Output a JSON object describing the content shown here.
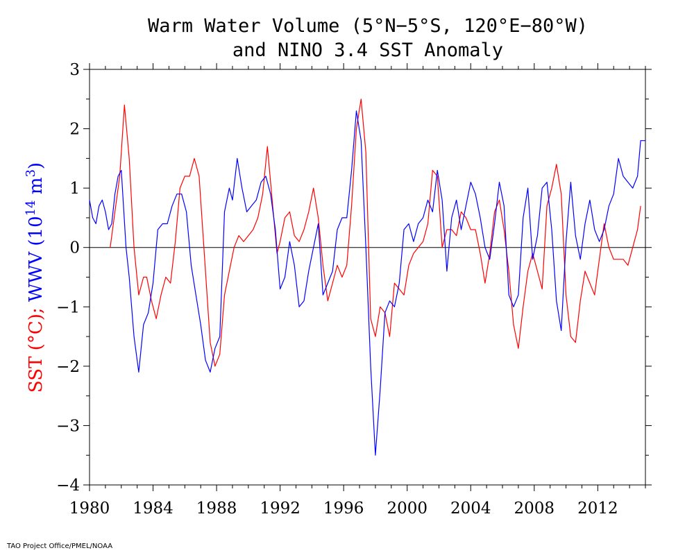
{
  "chart_data": {
    "type": "line",
    "title_line1": "Warm Water Volume (5°N−5°S, 120°E−80°W)",
    "title_line2": "and NINO 3.4 SST Anomaly",
    "ylabel_sst": "SST (°C); ",
    "ylabel_wwv": "WWV (10",
    "ylabel_exp": "14",
    "ylabel_unit": " m",
    "ylabel_unit_exp": "3",
    "ylabel_close": ")",
    "xlim": [
      1980,
      2015
    ],
    "ylim": [
      -4,
      3
    ],
    "xticks": [
      "1980",
      "1984",
      "1988",
      "1992",
      "1996",
      "2000",
      "2004",
      "2008",
      "2012"
    ],
    "yticks": [
      "3",
      "2",
      "1",
      "0",
      "−1",
      "−2",
      "−3",
      "−4"
    ],
    "colors": {
      "sst": "#ff0000",
      "wwv": "#0000ff",
      "zero_line": "#000000"
    },
    "series": [
      {
        "key": "sst",
        "x": [
          1981.3,
          1981.6,
          1981.9,
          1982.2,
          1982.5,
          1982.8,
          1983.1,
          1983.4,
          1983.6,
          1983.9,
          1984.2,
          1984.5,
          1984.8,
          1985.1,
          1985.4,
          1985.7,
          1986.0,
          1986.3,
          1986.6,
          1986.9,
          1987.2,
          1987.6,
          1987.9,
          1988.2,
          1988.5,
          1988.8,
          1989.1,
          1989.4,
          1989.7,
          1990.0,
          1990.3,
          1990.6,
          1990.9,
          1991.2,
          1991.5,
          1991.8,
          1992.0,
          1992.3,
          1992.6,
          1992.9,
          1993.2,
          1993.5,
          1993.8,
          1994.1,
          1994.4,
          1994.7,
          1995.0,
          1995.3,
          1995.6,
          1995.9,
          1996.2,
          1996.5,
          1996.8,
          1997.1,
          1997.4,
          1997.7,
          1998.0,
          1998.3,
          1998.6,
          1998.9,
          1999.2,
          1999.5,
          1999.8,
          2000.1,
          2000.4,
          2000.7,
          2001.0,
          2001.3,
          2001.6,
          2001.9,
          2002.2,
          2002.5,
          2002.8,
          2003.1,
          2003.4,
          2003.7,
          2004.0,
          2004.3,
          2004.6,
          2004.9,
          2005.2,
          2005.5,
          2005.8,
          2006.1,
          2006.4,
          2006.7,
          2007.0,
          2007.3,
          2007.6,
          2007.9,
          2008.2,
          2008.5,
          2008.8,
          2009.1,
          2009.4,
          2009.7,
          2010.0,
          2010.3,
          2010.6,
          2010.9,
          2011.2,
          2011.5,
          2011.8,
          2012.1,
          2012.4,
          2012.7,
          2013.0,
          2013.3,
          2013.6,
          2013.9,
          2014.2,
          2014.5,
          2014.7
        ],
        "values": [
          0.0,
          0.6,
          1.2,
          2.4,
          1.5,
          0.0,
          -0.8,
          -0.5,
          -0.5,
          -0.9,
          -1.2,
          -0.8,
          -0.5,
          -0.6,
          0.1,
          1.0,
          1.2,
          1.2,
          1.5,
          1.2,
          0.0,
          -1.6,
          -2.0,
          -1.8,
          -0.8,
          -0.4,
          0.0,
          0.2,
          0.1,
          0.2,
          0.3,
          0.5,
          0.9,
          1.7,
          0.8,
          -0.1,
          0.1,
          0.5,
          0.6,
          0.2,
          0.1,
          0.3,
          0.6,
          1.0,
          0.5,
          -0.3,
          -0.9,
          -0.6,
          -0.3,
          -0.5,
          -0.3,
          0.7,
          2.0,
          2.5,
          1.6,
          -1.2,
          -1.5,
          -1.0,
          -1.1,
          -1.5,
          -0.6,
          -0.7,
          -0.8,
          -0.3,
          -0.1,
          0.0,
          0.1,
          0.4,
          1.3,
          1.2,
          0.0,
          0.3,
          0.3,
          0.2,
          0.6,
          0.5,
          0.3,
          0.3,
          -0.1,
          -0.6,
          -0.1,
          0.6,
          0.8,
          0.3,
          -0.4,
          -1.3,
          -1.7,
          -1.0,
          -0.4,
          -0.1,
          -0.4,
          -0.7,
          0.7,
          1.0,
          1.4,
          0.9,
          -0.8,
          -1.5,
          -1.6,
          -0.9,
          -0.4,
          -0.6,
          -0.8,
          -0.2,
          0.4,
          0.0,
          -0.2,
          -0.2,
          -0.2,
          -0.3,
          0.0,
          0.3,
          0.7
        ]
      },
      {
        "key": "wwv",
        "x": [
          1980.0,
          1980.2,
          1980.4,
          1980.6,
          1980.8,
          1981.0,
          1981.2,
          1981.4,
          1981.6,
          1981.8,
          1982.0,
          1982.3,
          1982.5,
          1982.8,
          1983.1,
          1983.4,
          1983.7,
          1984.0,
          1984.3,
          1984.6,
          1984.9,
          1985.2,
          1985.5,
          1985.8,
          1986.1,
          1986.4,
          1986.7,
          1987.0,
          1987.3,
          1987.6,
          1987.9,
          1988.2,
          1988.5,
          1988.8,
          1989.0,
          1989.3,
          1989.6,
          1989.9,
          1990.2,
          1990.5,
          1990.8,
          1991.1,
          1991.4,
          1991.7,
          1992.0,
          1992.3,
          1992.6,
          1992.9,
          1993.2,
          1993.5,
          1993.8,
          1994.1,
          1994.4,
          1994.7,
          1995.0,
          1995.3,
          1995.6,
          1995.9,
          1996.2,
          1996.5,
          1996.8,
          1997.1,
          1997.4,
          1997.7,
          1998.0,
          1998.3,
          1998.6,
          1998.9,
          1999.2,
          1999.5,
          1999.8,
          2000.1,
          2000.4,
          2000.7,
          2001.0,
          2001.3,
          2001.6,
          2001.9,
          2002.2,
          2002.5,
          2002.8,
          2003.1,
          2003.4,
          2003.7,
          2004.0,
          2004.3,
          2004.6,
          2004.9,
          2005.2,
          2005.5,
          2005.8,
          2006.1,
          2006.4,
          2006.7,
          2007.0,
          2007.3,
          2007.6,
          2007.9,
          2008.2,
          2008.5,
          2008.8,
          2009.1,
          2009.4,
          2009.7,
          2010.0,
          2010.3,
          2010.6,
          2010.9,
          2011.2,
          2011.5,
          2011.8,
          2012.1,
          2012.4,
          2012.7,
          2013.0,
          2013.3,
          2013.6,
          2013.9,
          2014.2,
          2014.5,
          2014.7,
          2015.0
        ],
        "values": [
          0.8,
          0.5,
          0.4,
          0.7,
          0.8,
          0.6,
          0.3,
          0.4,
          0.9,
          1.2,
          1.3,
          0.0,
          -0.5,
          -1.5,
          -2.1,
          -1.3,
          -1.1,
          -0.6,
          0.3,
          0.4,
          0.4,
          0.7,
          0.9,
          0.9,
          0.6,
          -0.3,
          -0.8,
          -1.3,
          -1.9,
          -2.1,
          -1.7,
          -1.5,
          0.6,
          1.0,
          0.8,
          1.5,
          1.0,
          0.6,
          0.7,
          0.8,
          1.1,
          1.2,
          0.9,
          0.3,
          -0.7,
          -0.5,
          0.1,
          -0.3,
          -1.0,
          -0.9,
          -0.4,
          0.0,
          0.4,
          -0.8,
          -0.6,
          -0.4,
          0.3,
          0.5,
          0.5,
          1.3,
          2.3,
          1.8,
          0.0,
          -2.0,
          -3.5,
          -2.4,
          -1.1,
          -0.9,
          -1.0,
          -0.6,
          0.3,
          0.4,
          0.1,
          0.4,
          0.5,
          0.8,
          0.6,
          1.3,
          0.8,
          -0.4,
          0.5,
          0.8,
          0.3,
          0.7,
          1.1,
          0.9,
          0.5,
          0.0,
          -0.2,
          0.4,
          1.1,
          0.7,
          -0.8,
          -1.0,
          -0.8,
          0.5,
          1.0,
          -0.2,
          0.2,
          1.0,
          1.1,
          0.3,
          -0.9,
          -1.4,
          0.1,
          1.1,
          0.2,
          -0.2,
          0.4,
          0.8,
          0.3,
          0.1,
          0.3,
          0.7,
          0.9,
          1.5,
          1.2,
          1.1,
          1.0,
          1.2,
          1.8,
          1.8
        ]
      }
    ]
  },
  "footer": {
    "credit": "TAO Project Office/PMEL/NOAA"
  }
}
